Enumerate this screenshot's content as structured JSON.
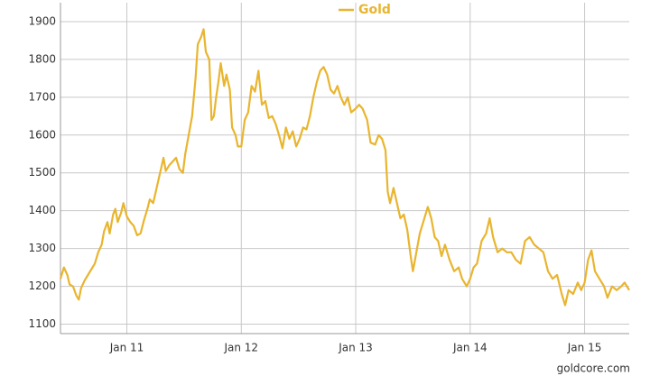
{
  "chart_data": {
    "type": "line",
    "x": [
      2010.42,
      2010.45,
      2010.48,
      2010.5,
      2010.53,
      2010.56,
      2010.58,
      2010.6,
      2010.63,
      2010.66,
      2010.7,
      2010.72,
      2010.75,
      2010.78,
      2010.8,
      2010.83,
      2010.85,
      2010.88,
      2010.9,
      2010.92,
      2010.95,
      2010.97,
      2011.0,
      2011.03,
      2011.06,
      2011.09,
      2011.12,
      2011.15,
      2011.18,
      2011.2,
      2011.23,
      2011.26,
      2011.29,
      2011.32,
      2011.34,
      2011.37,
      2011.4,
      2011.43,
      2011.46,
      2011.49,
      2011.51,
      2011.54,
      2011.57,
      2011.6,
      2011.62,
      2011.65,
      2011.67,
      2011.69,
      2011.72,
      2011.74,
      2011.76,
      2011.78,
      2011.8,
      2011.82,
      2011.85,
      2011.87,
      2011.9,
      2011.92,
      2011.95,
      2011.97,
      2012.0,
      2012.03,
      2012.06,
      2012.09,
      2012.12,
      2012.15,
      2012.18,
      2012.21,
      2012.24,
      2012.27,
      2012.3,
      2012.33,
      2012.36,
      2012.39,
      2012.42,
      2012.45,
      2012.48,
      2012.51,
      2012.54,
      2012.57,
      2012.6,
      2012.63,
      2012.66,
      2012.69,
      2012.72,
      2012.75,
      2012.78,
      2012.81,
      2012.84,
      2012.87,
      2012.9,
      2012.93,
      2012.96,
      2013.0,
      2013.03,
      2013.06,
      2013.1,
      2013.13,
      2013.17,
      2013.2,
      2013.23,
      2013.26,
      2013.28,
      2013.3,
      2013.33,
      2013.36,
      2013.39,
      2013.42,
      2013.45,
      2013.48,
      2013.5,
      2013.53,
      2013.56,
      2013.6,
      2013.63,
      2013.66,
      2013.69,
      2013.72,
      2013.75,
      2013.78,
      2013.82,
      2013.86,
      2013.9,
      2013.93,
      2013.97,
      2014.0,
      2014.03,
      2014.06,
      2014.1,
      2014.14,
      2014.17,
      2014.2,
      2014.24,
      2014.28,
      2014.32,
      2014.36,
      2014.4,
      2014.44,
      2014.48,
      2014.52,
      2014.56,
      2014.6,
      2014.64,
      2014.68,
      2014.72,
      2014.76,
      2014.8,
      2014.83,
      2014.86,
      2014.9,
      2014.94,
      2014.97,
      2015.0,
      2015.03,
      2015.06,
      2015.09,
      2015.13,
      2015.17,
      2015.2,
      2015.24,
      2015.28,
      2015.32,
      2015.35,
      2015.39
    ],
    "series": [
      {
        "name": "Gold",
        "color": "#e9b52f",
        "values": [
          1220,
          1250,
          1230,
          1205,
          1200,
          1175,
          1165,
          1195,
          1215,
          1230,
          1250,
          1260,
          1290,
          1310,
          1345,
          1370,
          1340,
          1390,
          1405,
          1370,
          1395,
          1420,
          1385,
          1370,
          1360,
          1335,
          1340,
          1375,
          1405,
          1430,
          1420,
          1460,
          1500,
          1540,
          1505,
          1520,
          1530,
          1540,
          1510,
          1500,
          1550,
          1600,
          1650,
          1750,
          1840,
          1860,
          1880,
          1820,
          1800,
          1640,
          1650,
          1700,
          1740,
          1790,
          1730,
          1760,
          1720,
          1620,
          1600,
          1570,
          1570,
          1640,
          1660,
          1730,
          1715,
          1770,
          1680,
          1690,
          1645,
          1650,
          1630,
          1600,
          1565,
          1620,
          1590,
          1610,
          1570,
          1590,
          1620,
          1615,
          1650,
          1700,
          1740,
          1770,
          1780,
          1760,
          1720,
          1710,
          1730,
          1700,
          1680,
          1700,
          1660,
          1670,
          1680,
          1670,
          1640,
          1580,
          1575,
          1600,
          1590,
          1560,
          1450,
          1420,
          1460,
          1420,
          1380,
          1390,
          1350,
          1280,
          1240,
          1290,
          1340,
          1380,
          1410,
          1380,
          1330,
          1320,
          1280,
          1310,
          1270,
          1240,
          1250,
          1220,
          1200,
          1220,
          1250,
          1260,
          1320,
          1340,
          1380,
          1330,
          1290,
          1300,
          1290,
          1290,
          1270,
          1260,
          1320,
          1330,
          1310,
          1300,
          1290,
          1240,
          1220,
          1230,
          1180,
          1150,
          1190,
          1180,
          1210,
          1190,
          1210,
          1270,
          1295,
          1240,
          1220,
          1200,
          1170,
          1200,
          1190,
          1200,
          1210,
          1190
        ]
      }
    ],
    "xlim": [
      2010.42,
      2015.39
    ],
    "xticks": [
      {
        "value": 2011,
        "label": "Jan 11"
      },
      {
        "value": 2012,
        "label": "Jan 12"
      },
      {
        "value": 2013,
        "label": "Jan 13"
      },
      {
        "value": 2014,
        "label": "Jan 14"
      },
      {
        "value": 2015,
        "label": "Jan 15"
      }
    ],
    "ylim": [
      1075,
      1950
    ],
    "yticks": [
      1100,
      1200,
      1300,
      1400,
      1500,
      1600,
      1700,
      1800,
      1900
    ],
    "grid": true,
    "legend": "top",
    "source": "goldcore.com"
  }
}
